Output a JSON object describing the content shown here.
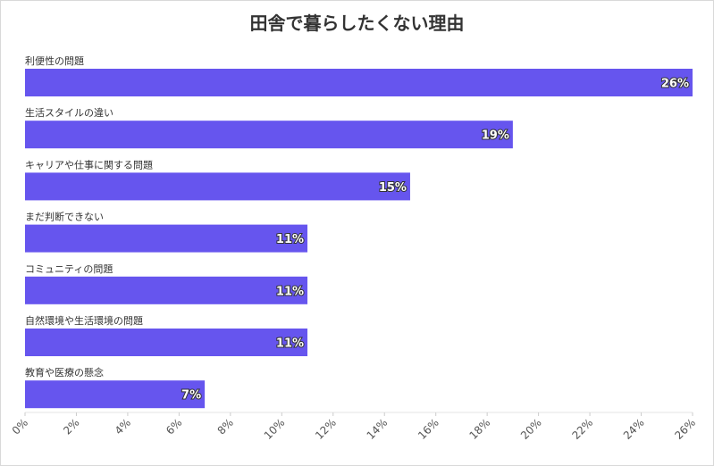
{
  "chart_data": {
    "type": "bar",
    "orientation": "horizontal",
    "title": "田舎で暮らしたくない理由",
    "categories": [
      "利便性の問題",
      "生活スタイルの違い",
      "キャリアや仕事に関する問題",
      "まだ判断できない",
      "コミュニティの問題",
      "自然環境や生活環境の問題",
      "教育や医療の懸念"
    ],
    "values": [
      26,
      19,
      15,
      11,
      11,
      11,
      7
    ],
    "value_labels": [
      "26%",
      "19%",
      "15%",
      "11%",
      "11%",
      "11%",
      "7%"
    ],
    "xlim": [
      0,
      26
    ],
    "xticks": [
      0,
      2,
      4,
      6,
      8,
      10,
      12,
      14,
      16,
      18,
      20,
      22,
      24,
      26
    ],
    "xtick_labels": [
      "0%",
      "2%",
      "4%",
      "6%",
      "8%",
      "10%",
      "12%",
      "14%",
      "16%",
      "18%",
      "20%",
      "22%",
      "24%",
      "26%"
    ],
    "bar_color": "#6655ee",
    "grid": false,
    "legend": "none"
  }
}
